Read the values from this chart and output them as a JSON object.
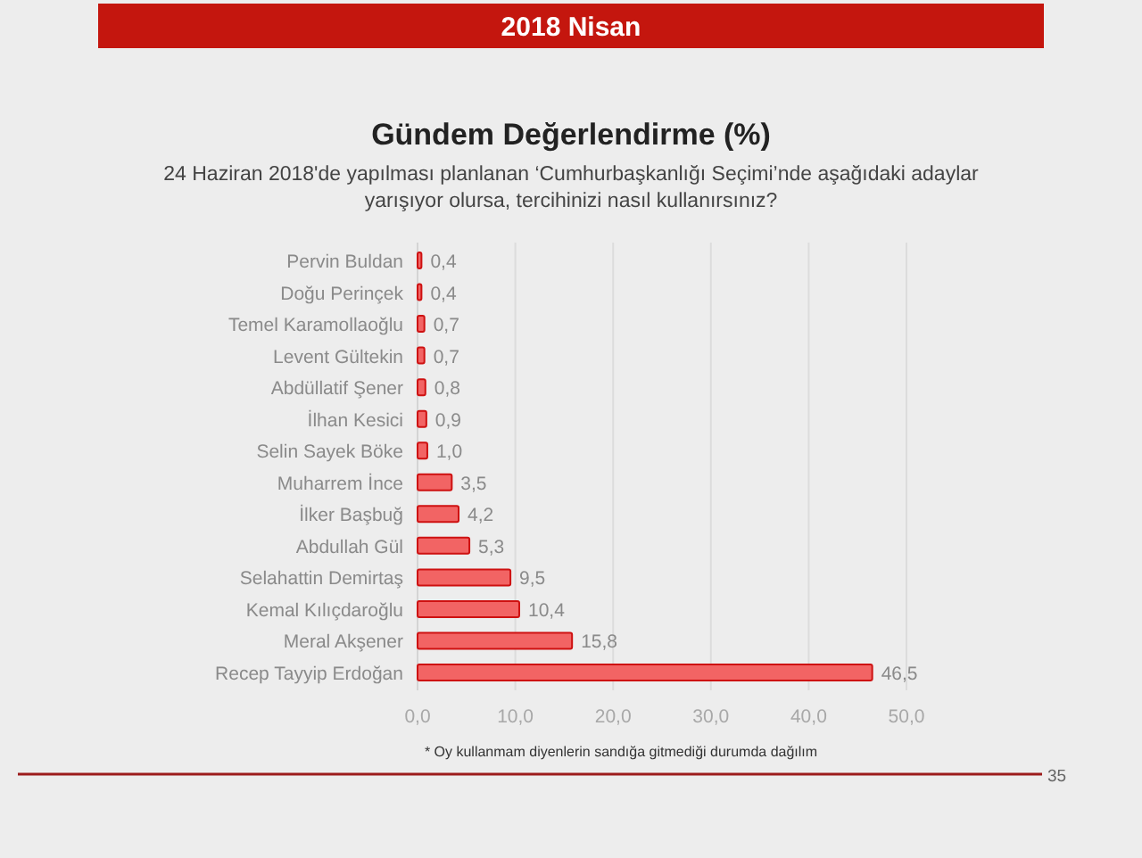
{
  "chart_data": {
    "type": "bar",
    "orientation": "horizontal",
    "title": "Gündem Değerlendirme (%)",
    "subtitle": "24 Haziran 2018'de yapılması planlanan ‘Cumhurbaşkanlığı Seçimi’nde aşağıdaki adaylar yarışıyor olursa, tercihinizi nasıl kullanırsınız?",
    "categories": [
      "Pervin Buldan",
      "Doğu Perinçek",
      "Temel Karamollaoğlu",
      "Levent Gültekin",
      "Abdüllatif Şener",
      "İlhan Kesici",
      "Selin Sayek Böke",
      "Muharrem İnce",
      "İlker Başbuğ",
      "Abdullah Gül",
      "Selahattin Demirtaş",
      "Kemal Kılıçdaroğlu",
      "Meral Akşener",
      "Recep Tayyip Erdoğan"
    ],
    "values": [
      0.4,
      0.4,
      0.7,
      0.7,
      0.8,
      0.9,
      1.0,
      3.5,
      4.2,
      5.3,
      9.5,
      10.4,
      15.8,
      46.5
    ],
    "value_labels": [
      "0,4",
      "0,4",
      "0,7",
      "0,7",
      "0,8",
      "0,9",
      "1,0",
      "3,5",
      "4,2",
      "5,3",
      "9,5",
      "10,4",
      "15,8",
      "46,5"
    ],
    "color": "#f26464",
    "xlim": [
      0,
      50
    ],
    "xticks": [
      {
        "value": 0,
        "label": "0,0"
      },
      {
        "value": 10,
        "label": "10,0"
      },
      {
        "value": 20,
        "label": "20,0"
      },
      {
        "value": 30,
        "label": "30,0"
      },
      {
        "value": 40,
        "label": "40,0"
      },
      {
        "value": 50,
        "label": "50,0"
      }
    ],
    "grid": "x",
    "annotations": [
      "2018 Nisan",
      "* Oy kullanmam diyenlerin sandığa gitmediği durumda dağılım",
      "35"
    ]
  }
}
